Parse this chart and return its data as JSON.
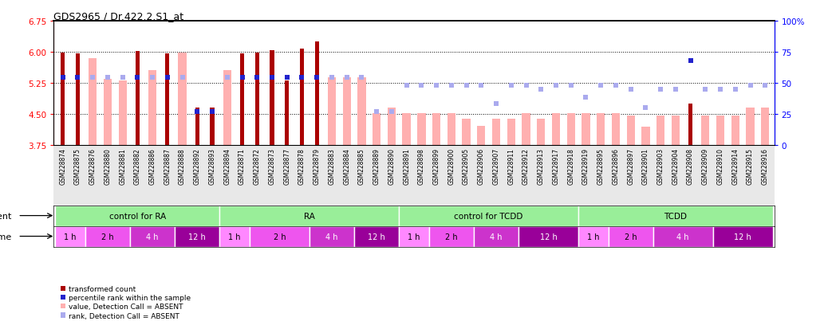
{
  "title": "GDS2965 / Dr.422.2.S1_at",
  "samples": [
    "GSM228874",
    "GSM228875",
    "GSM228876",
    "GSM228880",
    "GSM228881",
    "GSM228882",
    "GSM228886",
    "GSM228887",
    "GSM228888",
    "GSM228892",
    "GSM228893",
    "GSM228894",
    "GSM228871",
    "GSM228872",
    "GSM228873",
    "GSM228877",
    "GSM228878",
    "GSM228879",
    "GSM228883",
    "GSM228884",
    "GSM228885",
    "GSM228889",
    "GSM228890",
    "GSM228891",
    "GSM228898",
    "GSM228899",
    "GSM228900",
    "GSM228905",
    "GSM228906",
    "GSM228907",
    "GSM228911",
    "GSM228912",
    "GSM228913",
    "GSM228917",
    "GSM228918",
    "GSM228919",
    "GSM228895",
    "GSM228896",
    "GSM228897",
    "GSM228901",
    "GSM228903",
    "GSM228904",
    "GSM228908",
    "GSM228909",
    "GSM228910",
    "GSM228914",
    "GSM228915",
    "GSM228916"
  ],
  "value": [
    5.97,
    5.95,
    null,
    null,
    null,
    6.01,
    null,
    5.95,
    null,
    4.65,
    4.65,
    null,
    5.95,
    5.98,
    6.04,
    5.31,
    6.07,
    6.25,
    null,
    null,
    null,
    null,
    null,
    null,
    null,
    null,
    null,
    null,
    null,
    null,
    null,
    null,
    null,
    null,
    null,
    null,
    null,
    null,
    null,
    null,
    null,
    null,
    4.74,
    null,
    null,
    null,
    null,
    null
  ],
  "value_absent": [
    null,
    null,
    5.85,
    5.35,
    5.31,
    null,
    5.55,
    null,
    5.97,
    null,
    null,
    5.55,
    null,
    null,
    null,
    null,
    null,
    null,
    5.37,
    5.37,
    5.37,
    4.52,
    4.65,
    4.52,
    4.52,
    4.52,
    4.52,
    4.38,
    4.2,
    4.38,
    4.38,
    4.52,
    4.38,
    4.52,
    4.52,
    4.52,
    4.52,
    4.52,
    4.45,
    4.18,
    4.45,
    4.45,
    null,
    4.45,
    4.45,
    4.45,
    4.65,
    4.65
  ],
  "rank": [
    54,
    54,
    null,
    null,
    null,
    54,
    null,
    54,
    null,
    27,
    27,
    null,
    54,
    54,
    54,
    54,
    54,
    54,
    null,
    null,
    null,
    null,
    null,
    null,
    null,
    null,
    null,
    null,
    null,
    null,
    null,
    null,
    null,
    null,
    null,
    null,
    null,
    null,
    null,
    null,
    null,
    null,
    68,
    null,
    null,
    null,
    null,
    null
  ],
  "rank_absent": [
    null,
    null,
    54,
    54,
    54,
    null,
    54,
    null,
    54,
    null,
    null,
    54,
    null,
    null,
    null,
    null,
    null,
    null,
    54,
    54,
    54,
    27,
    27,
    48,
    48,
    48,
    48,
    48,
    48,
    33,
    48,
    48,
    45,
    48,
    48,
    38,
    48,
    48,
    45,
    30,
    45,
    45,
    null,
    45,
    45,
    45,
    48,
    48
  ],
  "ylim": [
    3.75,
    6.75
  ],
  "ylim_right": [
    0,
    100
  ],
  "yticks_left": [
    3.75,
    4.5,
    5.25,
    6.0,
    6.75
  ],
  "yticks_right": [
    0,
    25,
    50,
    75,
    100
  ],
  "grid_values": [
    6.0,
    5.25,
    4.5
  ],
  "bar_color": "#aa0000",
  "bar_absent_color": "#ffb0b0",
  "rank_color": "#2222cc",
  "rank_absent_color": "#aaaaee",
  "agent_color": "#99ee99",
  "agent_groups": [
    {
      "label": "control for RA",
      "start": 0,
      "end": 11
    },
    {
      "label": "RA",
      "start": 11,
      "end": 23
    },
    {
      "label": "control for TCDD",
      "start": 23,
      "end": 35
    },
    {
      "label": "TCDD",
      "start": 35,
      "end": 48
    }
  ],
  "time_groups": [
    {
      "label": "1 h",
      "start": 0,
      "end": 2
    },
    {
      "label": "2 h",
      "start": 2,
      "end": 5
    },
    {
      "label": "4 h",
      "start": 5,
      "end": 8
    },
    {
      "label": "12 h",
      "start": 8,
      "end": 11
    },
    {
      "label": "1 h",
      "start": 11,
      "end": 13
    },
    {
      "label": "2 h",
      "start": 13,
      "end": 17
    },
    {
      "label": "4 h",
      "start": 17,
      "end": 20
    },
    {
      "label": "12 h",
      "start": 20,
      "end": 23
    },
    {
      "label": "1 h",
      "start": 23,
      "end": 25
    },
    {
      "label": "2 h",
      "start": 25,
      "end": 28
    },
    {
      "label": "4 h",
      "start": 28,
      "end": 31
    },
    {
      "label": "12 h",
      "start": 31,
      "end": 35
    },
    {
      "label": "1 h",
      "start": 35,
      "end": 37
    },
    {
      "label": "2 h",
      "start": 37,
      "end": 40
    },
    {
      "label": "4 h",
      "start": 40,
      "end": 44
    },
    {
      "label": "12 h",
      "start": 44,
      "end": 48
    }
  ],
  "time_colors": {
    "1 h": "#ff88ff",
    "2 h": "#ee55ee",
    "4 h": "#cc33cc",
    "12 h": "#990099"
  },
  "legend_items": [
    {
      "color": "#aa0000",
      "label": "transformed count"
    },
    {
      "color": "#2222cc",
      "label": "percentile rank within the sample"
    },
    {
      "color": "#ffb0b0",
      "label": "value, Detection Call = ABSENT"
    },
    {
      "color": "#aaaaee",
      "label": "rank, Detection Call = ABSENT"
    }
  ]
}
